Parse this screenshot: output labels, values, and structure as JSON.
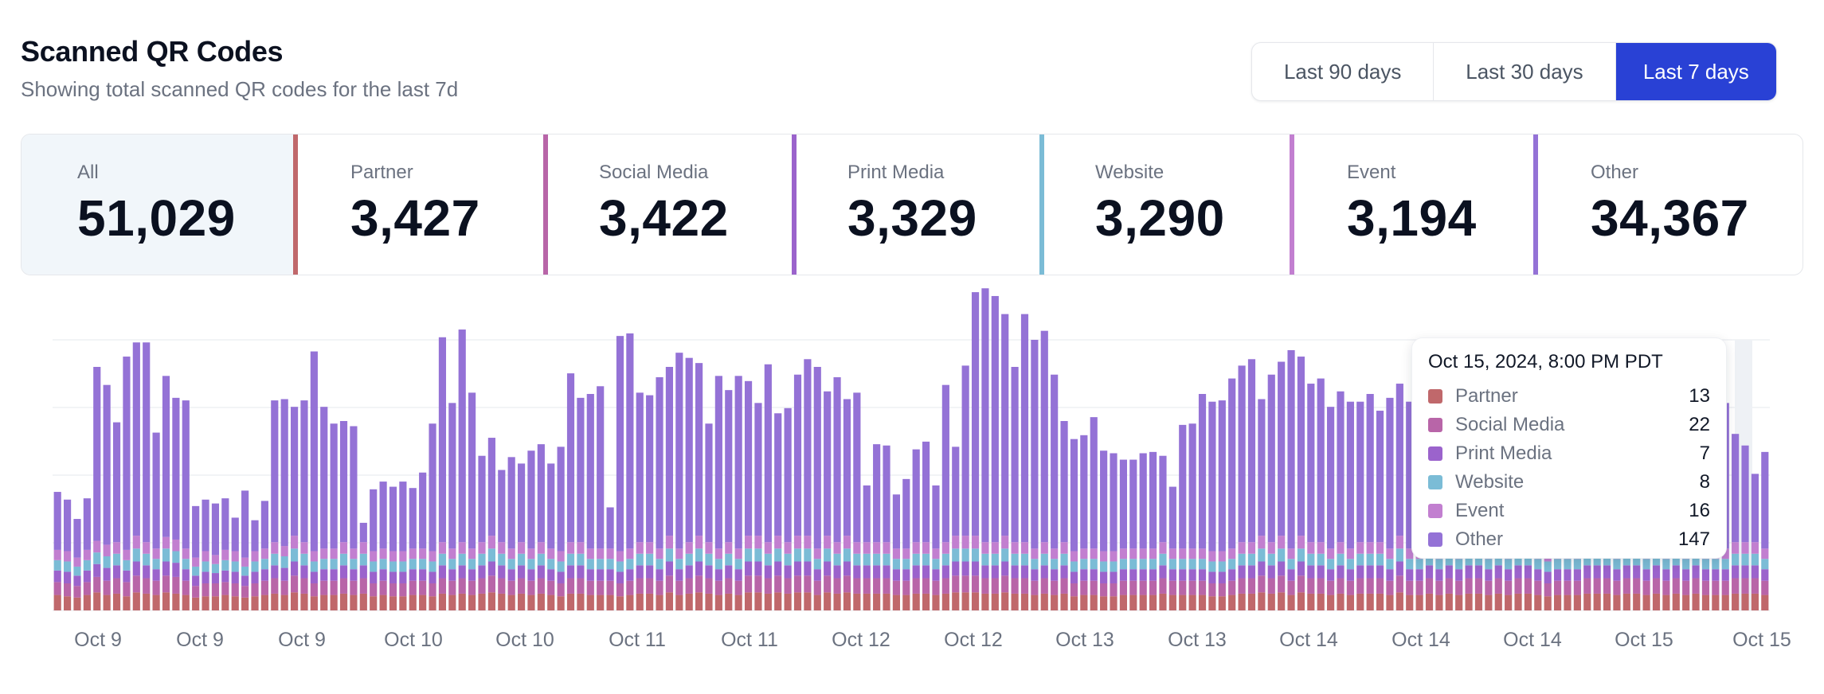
{
  "header": {
    "title": "Scanned QR Codes",
    "subtitle": "Showing total scanned QR codes for the last 7d"
  },
  "range": {
    "options": [
      "Last 90 days",
      "Last 30 days",
      "Last 7 days"
    ],
    "selected": "Last 7 days",
    "accent": "#2941d5"
  },
  "categories": [
    {
      "label": "All",
      "value": "51,029",
      "color": "#f1f6fa"
    },
    {
      "label": "Partner",
      "value": "3,427",
      "color": "#c0686b"
    },
    {
      "label": "Social Media",
      "value": "3,422",
      "color": "#b865a8"
    },
    {
      "label": "Print Media",
      "value": "3,329",
      "color": "#9b63cc"
    },
    {
      "label": "Website",
      "value": "3,290",
      "color": "#7bbcd6"
    },
    {
      "label": "Event",
      "value": "3,194",
      "color": "#c27fd0"
    },
    {
      "label": "Other",
      "value": "34,367",
      "color": "#9472d6"
    }
  ],
  "tooltip": {
    "title": "Oct 15, 2024, 8:00 PM PDT",
    "rows": [
      {
        "name": "Partner",
        "value": "13",
        "color": "#c0686b"
      },
      {
        "name": "Social Media",
        "value": "22",
        "color": "#b865a8"
      },
      {
        "name": "Print Media",
        "value": "7",
        "color": "#9b63cc"
      },
      {
        "name": "Website",
        "value": "8",
        "color": "#7bbcd6"
      },
      {
        "name": "Event",
        "value": "16",
        "color": "#c27fd0"
      },
      {
        "name": "Other",
        "value": "147",
        "color": "#9472d6"
      }
    ]
  },
  "chart_data": {
    "type": "bar",
    "stacked": true,
    "x_tick_labels": [
      "Oct 9",
      "Oct 9",
      "Oct 9",
      "Oct 10",
      "Oct 10",
      "Oct 11",
      "Oct 11",
      "Oct 12",
      "Oct 12",
      "Oct 13",
      "Oct 13",
      "Oct 14",
      "Oct 14",
      "Oct 14",
      "Oct 15",
      "Oct 15"
    ],
    "grid": true,
    "legend": "none",
    "series_colors": [
      "#c0686b",
      "#b865a8",
      "#9b63cc",
      "#7bbcd6",
      "#c27fd0",
      "#9472d6"
    ],
    "series": [
      {
        "name": "Partner",
        "values": [
          12,
          11,
          10,
          12,
          14,
          12,
          13,
          11,
          14,
          13,
          12,
          14,
          13,
          12,
          10,
          11,
          11,
          12,
          11,
          10,
          11,
          12,
          13,
          12,
          14,
          13,
          11,
          12,
          12,
          13,
          12,
          13,
          11,
          12,
          11,
          11,
          12,
          12,
          11,
          13,
          12,
          13,
          12,
          13,
          14,
          13,
          12,
          13,
          12,
          13,
          12,
          11,
          13,
          13,
          12,
          12,
          12,
          11,
          12,
          13,
          13,
          12,
          14,
          12,
          13,
          14,
          13,
          12,
          13,
          12,
          14,
          14,
          13,
          14,
          13,
          14,
          14,
          12,
          14,
          13,
          14,
          13,
          13,
          13,
          13,
          12,
          12,
          13,
          13,
          12,
          13,
          14,
          14,
          14,
          13,
          13,
          14,
          13,
          13,
          12,
          13,
          12,
          13,
          11,
          12,
          12,
          11,
          11,
          12,
          12,
          12,
          12,
          13,
          12,
          12,
          12,
          12,
          11,
          11,
          12,
          13,
          13,
          14,
          13,
          14,
          12,
          14,
          13,
          13,
          12,
          13,
          12,
          13,
          13,
          13,
          12,
          14,
          12,
          12,
          13,
          12,
          13,
          12,
          13,
          13,
          12,
          13,
          12,
          13,
          13,
          12,
          11,
          12,
          12,
          12,
          13,
          13,
          13,
          12,
          13,
          13,
          12,
          13,
          12,
          13,
          12,
          13,
          12,
          12,
          12,
          13,
          13,
          13,
          12
        ]
      },
      {
        "name": "Social Media",
        "values": [
          10,
          10,
          9,
          10,
          12,
          11,
          12,
          11,
          13,
          12,
          11,
          13,
          13,
          11,
          9,
          10,
          10,
          10,
          10,
          9,
          10,
          11,
          12,
          11,
          13,
          12,
          10,
          11,
          11,
          12,
          11,
          12,
          10,
          11,
          10,
          10,
          11,
          11,
          10,
          12,
          11,
          12,
          11,
          12,
          13,
          12,
          11,
          12,
          11,
          12,
          11,
          10,
          12,
          12,
          11,
          11,
          11,
          10,
          11,
          12,
          12,
          11,
          13,
          11,
          12,
          13,
          12,
          11,
          12,
          11,
          13,
          13,
          12,
          13,
          12,
          13,
          13,
          11,
          13,
          12,
          13,
          12,
          12,
          12,
          12,
          11,
          11,
          12,
          12,
          11,
          12,
          13,
          13,
          13,
          12,
          12,
          13,
          12,
          12,
          11,
          12,
          11,
          12,
          10,
          11,
          11,
          10,
          10,
          11,
          11,
          11,
          11,
          12,
          11,
          11,
          11,
          11,
          10,
          10,
          11,
          12,
          12,
          13,
          12,
          13,
          11,
          13,
          12,
          12,
          11,
          12,
          11,
          12,
          12,
          12,
          11,
          13,
          11,
          11,
          12,
          11,
          12,
          11,
          12,
          12,
          11,
          12,
          11,
          12,
          12,
          11,
          10,
          11,
          11,
          11,
          12,
          12,
          12,
          11,
          12,
          12,
          11,
          12,
          11,
          12,
          11,
          12,
          11,
          11,
          11,
          12,
          12,
          12,
          11
        ]
      },
      {
        "name": "Print Media",
        "values": [
          9,
          9,
          8,
          9,
          10,
          10,
          10,
          9,
          11,
          10,
          9,
          11,
          11,
          9,
          8,
          9,
          8,
          9,
          9,
          8,
          9,
          9,
          10,
          10,
          11,
          10,
          9,
          9,
          9,
          10,
          9,
          10,
          9,
          9,
          9,
          9,
          9,
          9,
          9,
          10,
          9,
          10,
          9,
          10,
          11,
          10,
          9,
          10,
          9,
          10,
          9,
          9,
          10,
          10,
          9,
          9,
          9,
          9,
          9,
          10,
          10,
          9,
          11,
          9,
          10,
          11,
          10,
          9,
          10,
          9,
          11,
          11,
          10,
          11,
          10,
          11,
          11,
          9,
          11,
          10,
          11,
          10,
          10,
          10,
          10,
          9,
          9,
          10,
          10,
          9,
          10,
          11,
          11,
          11,
          10,
          10,
          11,
          10,
          10,
          9,
          10,
          9,
          10,
          9,
          9,
          9,
          9,
          9,
          9,
          9,
          9,
          9,
          10,
          9,
          9,
          9,
          9,
          9,
          9,
          9,
          10,
          10,
          11,
          10,
          11,
          9,
          11,
          10,
          10,
          9,
          10,
          9,
          10,
          10,
          10,
          9,
          11,
          9,
          9,
          10,
          9,
          10,
          9,
          10,
          10,
          9,
          10,
          9,
          10,
          10,
          9,
          9,
          9,
          9,
          9,
          10,
          10,
          10,
          9,
          10,
          10,
          9,
          10,
          9,
          10,
          9,
          10,
          9,
          9,
          9,
          10,
          10,
          10,
          9
        ]
      },
      {
        "name": "Website",
        "values": [
          8,
          8,
          7,
          8,
          9,
          9,
          9,
          8,
          10,
          9,
          8,
          10,
          9,
          8,
          7,
          8,
          7,
          8,
          8,
          7,
          8,
          8,
          9,
          9,
          10,
          9,
          8,
          8,
          8,
          9,
          8,
          9,
          8,
          8,
          8,
          8,
          8,
          8,
          8,
          9,
          8,
          9,
          8,
          9,
          10,
          9,
          8,
          9,
          8,
          9,
          8,
          8,
          9,
          9,
          8,
          8,
          8,
          8,
          8,
          9,
          9,
          8,
          10,
          8,
          9,
          10,
          9,
          8,
          9,
          8,
          10,
          10,
          9,
          10,
          9,
          10,
          10,
          8,
          10,
          9,
          10,
          9,
          9,
          9,
          9,
          8,
          8,
          9,
          9,
          8,
          9,
          10,
          10,
          10,
          9,
          9,
          10,
          9,
          9,
          8,
          9,
          8,
          9,
          8,
          8,
          8,
          8,
          8,
          8,
          8,
          8,
          8,
          9,
          8,
          8,
          8,
          8,
          8,
          8,
          8,
          9,
          9,
          10,
          9,
          10,
          8,
          10,
          9,
          9,
          8,
          9,
          8,
          9,
          9,
          9,
          8,
          10,
          8,
          8,
          9,
          8,
          9,
          8,
          9,
          9,
          8,
          9,
          8,
          9,
          9,
          8,
          8,
          8,
          8,
          8,
          9,
          9,
          9,
          8,
          9,
          9,
          8,
          9,
          8,
          9,
          8,
          9,
          8,
          8,
          8,
          9,
          9,
          9,
          8
        ]
      },
      {
        "name": "Event",
        "values": [
          8,
          8,
          7,
          8,
          9,
          9,
          9,
          8,
          10,
          9,
          8,
          9,
          9,
          8,
          7,
          8,
          7,
          8,
          8,
          7,
          8,
          8,
          9,
          8,
          10,
          9,
          8,
          8,
          8,
          9,
          8,
          9,
          8,
          8,
          8,
          8,
          8,
          8,
          8,
          9,
          8,
          9,
          8,
          9,
          10,
          9,
          8,
          9,
          8,
          9,
          8,
          8,
          9,
          9,
          8,
          8,
          8,
          8,
          8,
          9,
          9,
          8,
          10,
          8,
          9,
          10,
          9,
          8,
          9,
          8,
          10,
          10,
          9,
          10,
          9,
          10,
          10,
          8,
          10,
          9,
          10,
          9,
          9,
          9,
          9,
          8,
          8,
          9,
          9,
          8,
          9,
          10,
          10,
          10,
          9,
          9,
          10,
          9,
          9,
          8,
          9,
          8,
          9,
          8,
          8,
          8,
          8,
          8,
          8,
          8,
          8,
          8,
          9,
          8,
          8,
          8,
          8,
          8,
          8,
          8,
          9,
          9,
          10,
          9,
          10,
          8,
          10,
          9,
          9,
          8,
          9,
          8,
          9,
          9,
          9,
          8,
          10,
          8,
          8,
          9,
          8,
          9,
          8,
          9,
          9,
          8,
          9,
          8,
          9,
          9,
          8,
          8,
          8,
          8,
          8,
          9,
          9,
          9,
          8,
          9,
          9,
          8,
          9,
          8,
          9,
          8,
          9,
          8,
          8,
          8,
          9,
          9,
          9,
          8
        ]
      },
      {
        "name": "Other",
        "values": [
          45,
          40,
          30,
          40,
          135,
          124,
          93,
          150,
          150,
          155,
          90,
          125,
          110,
          115,
          40,
          40,
          40,
          40,
          26,
          52,
          24,
          37,
          110,
          114,
          100,
          110,
          155,
          110,
          97,
          94,
          95,
          15,
          48,
          52,
          50,
          54,
          47,
          59,
          99,
          159,
          113,
          165,
          121,
          67,
          76,
          56,
          71,
          61,
          76,
          76,
          66,
          81,
          131,
          112,
          120,
          126,
          32,
          167,
          167,
          116,
          114,
          133,
          131,
          152,
          143,
          134,
          92,
          134,
          118,
          134,
          120,
          103,
          138,
          95,
          104,
          125,
          137,
          141,
          112,
          128,
          106,
          116,
          44,
          76,
          75,
          42,
          54,
          72,
          78,
          49,
          122,
          69,
          132,
          189,
          197,
          191,
          172,
          136,
          177,
          162,
          164,
          135,
          94,
          87,
          88,
          102,
          78,
          76,
          69,
          69,
          74,
          75,
          67,
          48,
          96,
          97,
          120,
          116,
          117,
          132,
          137,
          142,
          106,
          130,
          135,
          154,
          139,
          123,
          127,
          110,
          117,
          114,
          109,
          115,
          102,
          117,
          118,
          114,
          114,
          114,
          125,
          116,
          110,
          112,
          113,
          118,
          112,
          105,
          116,
          106,
          104,
          103,
          100,
          116,
          108,
          122,
          109,
          120,
          112,
          110,
          116,
          104,
          110,
          102,
          113,
          94,
          105,
          108,
          109,
          113,
          84,
          75,
          53,
          75
        ]
      }
    ],
    "y_max": 210
  }
}
